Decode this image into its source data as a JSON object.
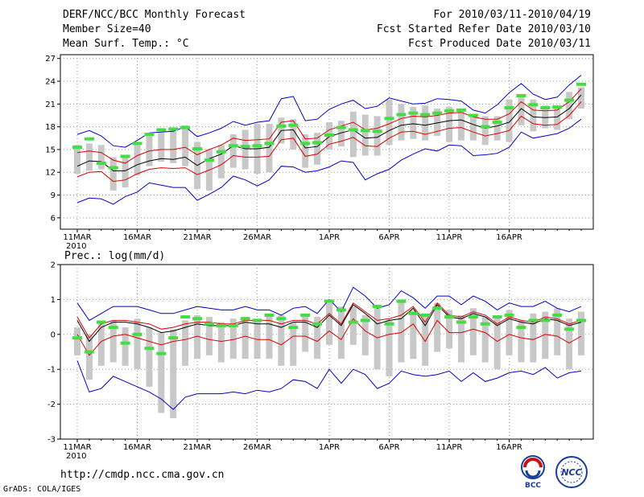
{
  "header": {
    "title": "DERF/NCC/BCC Monthly Forecast",
    "member_size": "Member Size=40",
    "variable": "Mean Surf. Temp.: °C",
    "period": "For 2010/03/11-2010/04/19",
    "started": "Fcst Started Refer Date 2010/03/10",
    "produced": "Fcst Produced Date 2010/03/11"
  },
  "footer": {
    "url": "http://cmdp.ncc.cma.gov.cn",
    "grads": "GrADS: COLA/IGES",
    "logo_left": "BCC",
    "logo_right": "NCC"
  },
  "colors": {
    "mean": "#000000",
    "spread": "#dd0000",
    "envelope": "#0000cc",
    "box": "#c8c8c8",
    "obs": "#44dd44"
  },
  "chart_data": [
    {
      "type": "line",
      "title": "Mean Surf. Temp.: °C",
      "x_tick_labels": [
        "11MAR",
        "16MAR",
        "21MAR",
        "26MAR",
        "1APR",
        "6APR",
        "11APR",
        "16APR"
      ],
      "x_tick_days": [
        0,
        5,
        10,
        15,
        21,
        26,
        31,
        36
      ],
      "year_label": "2010",
      "days": 40,
      "ylim": [
        4.5,
        27.5
      ],
      "yticks": [
        6,
        9,
        12,
        15,
        18,
        21,
        24,
        27
      ],
      "grid": true,
      "series": [
        {
          "name": "ensemble mean",
          "color": "black",
          "values": [
            12.8,
            13.5,
            13.4,
            12.2,
            12.2,
            13.0,
            13.5,
            13.8,
            13.7,
            14.0,
            12.9,
            13.8,
            14.4,
            15.5,
            15.1,
            15.1,
            15.3,
            17.5,
            17.6,
            15.2,
            15.4,
            16.7,
            17.2,
            17.6,
            16.5,
            16.6,
            17.5,
            18.2,
            18.4,
            18.2,
            18.5,
            18.8,
            18.9,
            18.3,
            17.8,
            18.1,
            18.6,
            20.4,
            19.3,
            19.2,
            19.3,
            20.4,
            22.2
          ]
        },
        {
          "name": "mean + spread",
          "color": "red",
          "values": [
            14.6,
            14.8,
            14.6,
            13.6,
            13.2,
            14.2,
            14.8,
            15.0,
            15.0,
            15.3,
            14.3,
            15.0,
            15.6,
            16.5,
            16.2,
            16.3,
            16.4,
            18.6,
            18.8,
            16.4,
            16.5,
            17.6,
            18.1,
            18.6,
            17.6,
            17.8,
            18.4,
            19.1,
            19.4,
            19.3,
            19.5,
            19.8,
            19.9,
            19.3,
            19.0,
            19.0,
            19.7,
            21.3,
            20.2,
            20.1,
            20.2,
            21.3,
            23.0
          ]
        },
        {
          "name": "mean - spread",
          "color": "red",
          "values": [
            11.4,
            12.0,
            12.1,
            10.8,
            11.0,
            11.8,
            12.4,
            12.6,
            12.5,
            12.6,
            11.7,
            12.3,
            13.0,
            14.2,
            14.0,
            14.0,
            14.1,
            16.3,
            16.5,
            14.1,
            14.4,
            15.7,
            16.1,
            16.6,
            15.5,
            15.4,
            16.5,
            17.3,
            17.4,
            17.0,
            17.4,
            17.8,
            17.9,
            17.3,
            16.8,
            17.1,
            17.5,
            19.4,
            18.4,
            18.2,
            18.3,
            19.5,
            21.3
          ]
        },
        {
          "name": "ensemble max",
          "color": "blue",
          "values": [
            17.0,
            17.5,
            16.8,
            15.5,
            15.3,
            16.2,
            17.2,
            17.3,
            17.4,
            18.0,
            16.7,
            17.2,
            17.8,
            18.7,
            18.2,
            18.6,
            18.8,
            21.7,
            22.0,
            18.8,
            19.0,
            20.3,
            21.0,
            21.5,
            20.4,
            20.7,
            21.8,
            21.4,
            21.0,
            21.1,
            21.7,
            21.6,
            21.4,
            20.2,
            19.8,
            20.9,
            22.5,
            23.7,
            22.3,
            21.6,
            21.9,
            23.5,
            24.8
          ]
        },
        {
          "name": "ensemble min",
          "color": "blue",
          "values": [
            8.0,
            8.6,
            8.5,
            7.8,
            8.8,
            9.4,
            10.6,
            10.3,
            10.0,
            10.0,
            8.3,
            9.1,
            10.0,
            11.5,
            11.0,
            10.2,
            11.0,
            12.8,
            12.7,
            12.0,
            12.2,
            12.7,
            13.5,
            13.3,
            11.0,
            11.8,
            12.4,
            13.6,
            14.4,
            15.1,
            14.8,
            15.6,
            15.5,
            14.2,
            14.3,
            14.5,
            15.3,
            17.3,
            16.5,
            16.8,
            17.1,
            17.8,
            19.0
          ]
        },
        {
          "name": "observed",
          "color": "green",
          "values": [
            15.3,
            16.4,
            13.2,
            12.6,
            14.1,
            15.8,
            17.0,
            17.6,
            17.7,
            17.9,
            15.1,
            13.6,
            14.7,
            15.5,
            15.4,
            15.5,
            15.8,
            18.1,
            18.2,
            15.8,
            15.9,
            16.9,
            17.9,
            17.6,
            17.5,
            17.4,
            19.1,
            19.6,
            19.8,
            19.6,
            19.8,
            20.1,
            20.2,
            19.5,
            18.0,
            18.6,
            20.5,
            22.1,
            20.9,
            20.5,
            20.6,
            21.5,
            23.6
          ]
        },
        {
          "name": "box top",
          "color": "gray",
          "values": [
            15.6,
            15.8,
            15.6,
            14.0,
            14.0,
            15.6,
            16.8,
            17.2,
            17.6,
            18.2,
            16.0,
            15.0,
            15.6,
            17.0,
            17.6,
            18.4,
            18.4,
            19.2,
            19.0,
            17.0,
            17.2,
            18.6,
            18.8,
            20.0,
            19.6,
            19.4,
            21.6,
            21.0,
            20.6,
            20.8,
            20.4,
            20.6,
            20.2,
            19.4,
            19.4,
            19.4,
            21.6,
            22.0,
            21.6,
            20.8,
            20.8,
            22.6,
            23.2
          ]
        },
        {
          "name": "box bottom",
          "color": "gray",
          "values": [
            11.8,
            12.2,
            12.4,
            9.6,
            10.0,
            11.6,
            12.8,
            13.4,
            13.2,
            12.8,
            9.8,
            9.6,
            11.2,
            12.6,
            12.4,
            11.8,
            12.0,
            15.8,
            15.0,
            12.6,
            13.0,
            15.0,
            15.4,
            14.0,
            14.2,
            14.2,
            15.6,
            16.2,
            16.4,
            16.2,
            16.8,
            16.0,
            16.2,
            16.2,
            15.6,
            16.2,
            16.0,
            18.2,
            17.4,
            17.8,
            17.6,
            19.0,
            20.4
          ]
        }
      ]
    },
    {
      "type": "line",
      "title": "Prec.: log(mm/d)",
      "x_tick_labels": [
        "11MAR",
        "16MAR",
        "21MAR",
        "26MAR",
        "1APR",
        "6APR",
        "11APR",
        "16APR"
      ],
      "x_tick_days": [
        0,
        5,
        10,
        15,
        21,
        26,
        31,
        36
      ],
      "year_label": "2010",
      "days": 40,
      "ylim": [
        -3,
        2
      ],
      "yticks": [
        -3,
        -2,
        -1,
        0,
        1,
        2
      ],
      "grid": true,
      "series": [
        {
          "name": "ensemble mean",
          "color": "black",
          "values": [
            0.4,
            -0.2,
            0.2,
            0.35,
            0.35,
            0.3,
            0.2,
            0.05,
            0.1,
            0.2,
            0.3,
            0.25,
            0.25,
            0.25,
            0.35,
            0.3,
            0.3,
            0.2,
            0.35,
            0.35,
            0.2,
            0.55,
            0.25,
            0.85,
            0.6,
            0.3,
            0.4,
            0.45,
            0.75,
            0.25,
            0.85,
            0.5,
            0.45,
            0.6,
            0.5,
            0.25,
            0.45,
            0.35,
            0.3,
            0.45,
            0.4,
            0.25,
            0.35
          ]
        },
        {
          "name": "mean + spread",
          "color": "red",
          "values": [
            0.5,
            -0.1,
            0.3,
            0.4,
            0.4,
            0.35,
            0.3,
            0.15,
            0.2,
            0.3,
            0.35,
            0.35,
            0.3,
            0.3,
            0.4,
            0.4,
            0.4,
            0.3,
            0.4,
            0.4,
            0.3,
            0.6,
            0.3,
            0.9,
            0.65,
            0.4,
            0.45,
            0.55,
            0.8,
            0.35,
            0.9,
            0.55,
            0.5,
            0.65,
            0.55,
            0.3,
            0.5,
            0.4,
            0.35,
            0.5,
            0.45,
            0.3,
            0.4
          ]
        },
        {
          "name": "mean - spread",
          "color": "red",
          "values": [
            0.0,
            -0.6,
            -0.2,
            -0.05,
            0.0,
            -0.1,
            -0.2,
            -0.3,
            -0.2,
            -0.15,
            -0.05,
            -0.15,
            -0.2,
            -0.15,
            -0.05,
            -0.15,
            -0.15,
            -0.3,
            -0.05,
            -0.05,
            -0.2,
            0.1,
            -0.15,
            0.45,
            0.1,
            -0.1,
            0.0,
            0.05,
            0.3,
            -0.2,
            0.4,
            0.05,
            0.05,
            0.15,
            0.05,
            -0.2,
            0.0,
            -0.1,
            -0.15,
            0.0,
            -0.05,
            -0.25,
            -0.05
          ]
        },
        {
          "name": "ensemble max",
          "color": "blue",
          "values": [
            0.9,
            0.4,
            0.6,
            0.8,
            0.8,
            0.8,
            0.7,
            0.6,
            0.6,
            0.7,
            0.8,
            0.75,
            0.7,
            0.7,
            0.8,
            0.7,
            0.7,
            0.55,
            0.75,
            0.8,
            0.6,
            1.0,
            0.65,
            1.35,
            1.1,
            0.75,
            0.85,
            1.25,
            1.05,
            0.75,
            1.1,
            1.1,
            0.85,
            1.1,
            0.95,
            0.7,
            0.9,
            0.8,
            0.8,
            0.95,
            0.75,
            0.65,
            0.8
          ]
        },
        {
          "name": "ensemble min",
          "color": "blue",
          "values": [
            -0.75,
            -1.65,
            -1.55,
            -1.2,
            -1.35,
            -1.5,
            -1.65,
            -1.85,
            -2.15,
            -1.8,
            -1.7,
            -1.7,
            -1.7,
            -1.65,
            -1.7,
            -1.6,
            -1.65,
            -1.55,
            -1.3,
            -1.35,
            -1.55,
            -1.0,
            -1.4,
            -1.0,
            -1.15,
            -1.55,
            -1.4,
            -1.05,
            -1.15,
            -1.2,
            -1.15,
            -1.05,
            -1.35,
            -1.1,
            -1.35,
            -1.25,
            -1.1,
            -1.05,
            -1.15,
            -0.95,
            -1.25,
            -1.1,
            -1.05
          ]
        },
        {
          "name": "observed",
          "color": "green",
          "values": [
            -0.1,
            -0.5,
            0.35,
            0.2,
            -0.25,
            0.0,
            -0.4,
            -0.55,
            -0.1,
            0.5,
            0.45,
            0.3,
            0.25,
            0.25,
            0.45,
            0.4,
            0.55,
            0.45,
            0.2,
            0.55,
            0.3,
            0.95,
            0.7,
            0.35,
            0.4,
            0.8,
            0.3,
            0.95,
            0.6,
            0.55,
            0.75,
            0.5,
            0.35,
            0.5,
            0.3,
            0.5,
            0.55,
            0.2,
            0.4,
            0.4,
            0.55,
            0.15,
            0.4
          ]
        },
        {
          "name": "box top",
          "color": "gray",
          "values": [
            0.2,
            0.0,
            0.4,
            0.4,
            0.2,
            0.45,
            0.2,
            0.05,
            0.15,
            0.4,
            0.55,
            0.5,
            0.35,
            0.45,
            0.5,
            0.45,
            0.6,
            0.55,
            0.35,
            0.6,
            0.5,
            0.9,
            0.8,
            0.8,
            0.55,
            0.75,
            0.4,
            1.0,
            0.7,
            0.6,
            0.9,
            0.7,
            0.55,
            0.75,
            0.5,
            0.55,
            0.7,
            0.4,
            0.6,
            0.65,
            0.75,
            0.45,
            0.65
          ]
        },
        {
          "name": "box bottom",
          "color": "gray",
          "values": [
            -0.6,
            -1.3,
            -0.9,
            -0.8,
            -0.9,
            -1.0,
            -1.5,
            -2.25,
            -2.4,
            -0.9,
            -0.7,
            -0.6,
            -0.8,
            -0.7,
            -0.7,
            -0.7,
            -0.7,
            -0.9,
            -0.9,
            -0.5,
            -0.7,
            -0.3,
            -0.7,
            -0.3,
            -0.6,
            -1.0,
            -1.2,
            -0.8,
            -0.7,
            -0.9,
            -0.5,
            -0.4,
            -0.8,
            -0.6,
            -0.8,
            -1.0,
            -0.6,
            -0.8,
            -0.8,
            -0.7,
            -0.6,
            -1.0,
            -0.6
          ]
        }
      ]
    }
  ]
}
